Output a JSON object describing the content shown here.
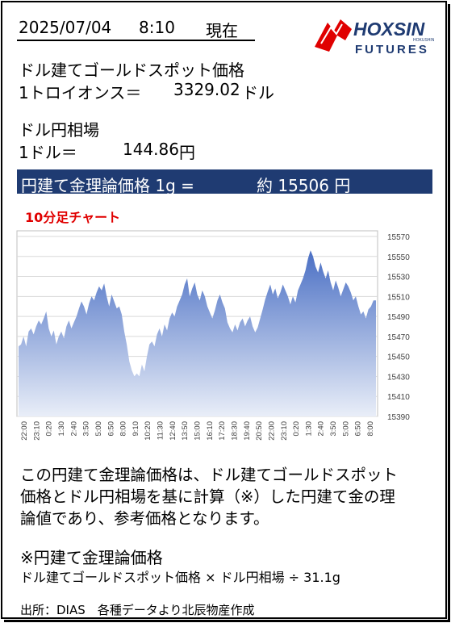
{
  "header": {
    "date": "2025/07/04",
    "time": "8:10",
    "now_label": "現在"
  },
  "brand": {
    "name": "HOXSIN",
    "sub": "FUTURES",
    "small": "HOKUSHIN"
  },
  "gold": {
    "title": "ドル建てゴールドスポット価格",
    "unit": "1トロイオンス＝",
    "value": "3329.02",
    "suffix": "ドル"
  },
  "fx": {
    "title": "ドル円相場",
    "unit": "1ドル＝",
    "value": "144.86",
    "suffix": "円"
  },
  "theory": {
    "label": "円建て金理論価格 1g =",
    "value": "約 15506 円"
  },
  "chart_title": "10分足チャート",
  "description": {
    "line1": "この円建て金理論価格は、ドル建てゴールドスポット",
    "line2": "価格とドル円相場を基に計算（※）した円建て金の理",
    "line3": "論値であり、参考価格となります。"
  },
  "formula": {
    "title": "※円建て金理論価格",
    "text": "ドル建てゴールドスポット価格 × ドル円相場 ÷ 31.1g"
  },
  "source": "出所：DIAS　各種データより北辰物産作成",
  "colors": {
    "bar": "#1f3b72",
    "area_top": "#4a6fc4",
    "area_bottom": "#e9eef8",
    "accent": "#e00000"
  },
  "chart_data": {
    "type": "area",
    "title": "10分足チャート",
    "y_ticks": [
      15390,
      15410,
      15430,
      15450,
      15470,
      15490,
      15510,
      15530,
      15550,
      15570
    ],
    "ylim": [
      15390,
      15570
    ],
    "x_ticks": [
      "22:00",
      "23:10",
      "0:20",
      "1:30",
      "2:40",
      "3:50",
      "5:00",
      "6:50",
      "8:00",
      "9:10",
      "10:20",
      "11:30",
      "12:40",
      "13:50",
      "15:00",
      "16:10",
      "17:20",
      "18:30",
      "19:40",
      "20:50",
      "22:00",
      "23:10",
      "0:20",
      "1:30",
      "2:40",
      "3:50",
      "5:00",
      "6:50",
      "8:00"
    ],
    "grid": true,
    "values": [
      15460,
      15462,
      15470,
      15460,
      15475,
      15478,
      15472,
      15480,
      15486,
      15482,
      15488,
      15495,
      15478,
      15470,
      15476,
      15462,
      15470,
      15475,
      15468,
      15480,
      15486,
      15478,
      15484,
      15490,
      15498,
      15505,
      15500,
      15492,
      15503,
      15510,
      15506,
      15514,
      15520,
      15516,
      15523,
      15510,
      15500,
      15512,
      15505,
      15498,
      15500,
      15492,
      15475,
      15462,
      15445,
      15436,
      15430,
      15433,
      15430,
      15442,
      15435,
      15450,
      15462,
      15465,
      15460,
      15472,
      15478,
      15470,
      15482,
      15476,
      15488,
      15494,
      15490,
      15500,
      15506,
      15512,
      15522,
      15528,
      15510,
      15518,
      15524,
      15512,
      15506,
      15516,
      15510,
      15500,
      15494,
      15488,
      15496,
      15506,
      15512,
      15504,
      15498,
      15484,
      15478,
      15474,
      15482,
      15476,
      15484,
      15488,
      15480,
      15486,
      15490,
      15480,
      15474,
      15479,
      15488,
      15497,
      15507,
      15515,
      15522,
      15512,
      15518,
      15508,
      15514,
      15522,
      15516,
      15510,
      15502,
      15510,
      15504,
      15516,
      15522,
      15528,
      15536,
      15548,
      15556,
      15550,
      15540,
      15534,
      15544,
      15535,
      15528,
      15536,
      15524,
      15516,
      15526,
      15519,
      15510,
      15517,
      15524,
      15520,
      15514,
      15506,
      15510,
      15500,
      15492,
      15495,
      15488,
      15497,
      15500,
      15506,
      15506
    ]
  }
}
